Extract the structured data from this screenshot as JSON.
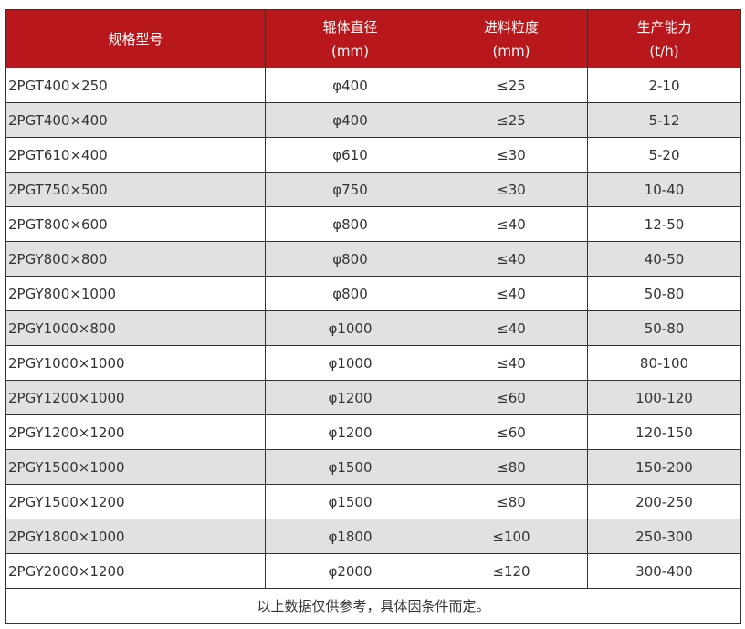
{
  "header": {
    "model": "规格型号",
    "roll_diameter": "辊体直径",
    "roll_unit": "(mm)",
    "feed_size": "进料粒度",
    "feed_unit": "(mm)",
    "capacity": "生产能力",
    "capacity_unit": "(t/h)"
  },
  "colors": {
    "header_bg": "#b8171b",
    "alt_row": "#e1e1e1"
  },
  "rows": [
    [
      "2PGT400×250",
      "φ400",
      "≤25",
      "2-10"
    ],
    [
      "2PGT400×400",
      "φ400",
      "≤25",
      "5-12"
    ],
    [
      "2PGT610×400",
      "φ610",
      "≤30",
      "5-20"
    ],
    [
      "2PGT750×500",
      "φ750",
      "≤30",
      "10-40"
    ],
    [
      "2PGT800×600",
      "φ800",
      "≤40",
      "12-50"
    ],
    [
      "2PGY800×800",
      "φ800",
      "≤40",
      "40-50"
    ],
    [
      "2PGY800×1000",
      "φ800",
      "≤40",
      "50-80"
    ],
    [
      "2PGY1000×800",
      "φ1000",
      "≤40",
      "50-80"
    ],
    [
      "2PGY1000×1000",
      "φ1000",
      "≤40",
      "80-100"
    ],
    [
      "2PGY1200×1000",
      "φ1200",
      "≤60",
      "100-120"
    ],
    [
      "2PGY1200×1200",
      "φ1200",
      "≤60",
      "120-150"
    ],
    [
      "2PGY1500×1000",
      "φ1500",
      "≤80",
      "150-200"
    ],
    [
      "2PGY1500×1200",
      "φ1500",
      "≤80",
      "200-250"
    ],
    [
      "2PGY1800×1000",
      "φ1800",
      "≤100",
      "250-300"
    ],
    [
      "2PGY2000×1200",
      "φ2000",
      "≤120",
      "300-400"
    ]
  ],
  "footer": "以上数据仅供参考，具体因条件而定。"
}
